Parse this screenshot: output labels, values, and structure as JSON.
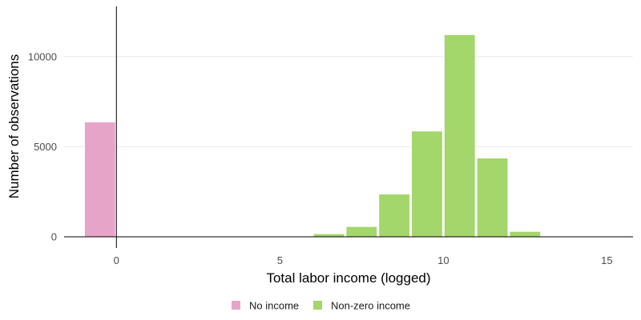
{
  "chart_data": {
    "type": "bar",
    "title": "",
    "xlabel": "Total labor income (logged)",
    "ylabel": "Number of observations",
    "xlim": [
      -1.6,
      15.8
    ],
    "ylim": [
      0,
      12700
    ],
    "x_ticks": [
      0,
      5,
      10,
      15
    ],
    "x_tick_labels": [
      "0",
      "5",
      "10",
      "15"
    ],
    "y_ticks": [
      0,
      5000,
      10000
    ],
    "y_tick_labels": [
      "0",
      "5000",
      "10000"
    ],
    "grid": true,
    "legend_position": "bottom",
    "series": [
      {
        "name": "No income",
        "color": "#e7a4c9",
        "bins": [
          {
            "x0": -1,
            "x1": 0,
            "value": 6350
          }
        ]
      },
      {
        "name": "Non-zero income",
        "color": "#a3d66b",
        "bins": [
          {
            "x0": 6,
            "x1": 7,
            "value": 150
          },
          {
            "x0": 7,
            "x1": 8,
            "value": 550
          },
          {
            "x0": 8,
            "x1": 9,
            "value": 2350
          },
          {
            "x0": 9,
            "x1": 10,
            "value": 5850
          },
          {
            "x0": 10,
            "x1": 11,
            "value": 11200
          },
          {
            "x0": 11,
            "x1": 12,
            "value": 4350
          },
          {
            "x0": 12,
            "x1": 13,
            "value": 280
          }
        ]
      }
    ]
  }
}
